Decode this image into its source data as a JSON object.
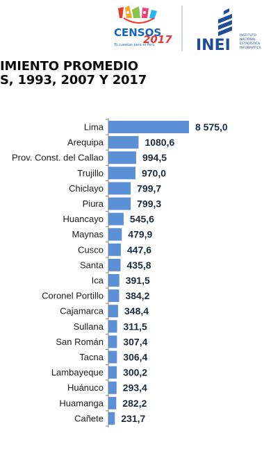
{
  "header": {
    "censos_logo": {
      "name": "CENSOS",
      "year": "2017",
      "tagline": "Tú cuentas para el Perú"
    },
    "inei_logo": {
      "acronym": "INEI",
      "line1": "INSTITUTO",
      "line2": "NACIONAL",
      "line3": "ESTADÍSTICA",
      "line4": "INFORMÁTICA"
    },
    "title_line1": "IMIENTO PROMEDIO",
    "title_line2": "S, 1993, 2007 Y 2017"
  },
  "colors": {
    "bar": "#5b8fd6",
    "axis": "#7f7f7f",
    "title": "#0b0b0b"
  },
  "chart_data": {
    "type": "bar",
    "orientation": "horizontal",
    "categories": [
      "Lima",
      "Arequipa",
      "Prov. Const. del Callao",
      "Trujillo",
      "Chiclayo",
      "Piura",
      "Huancayo",
      "Maynas",
      "Cusco",
      "Santa",
      "Ica",
      "Coronel Portillo",
      "Cajamarca",
      "Sullana",
      "San Román",
      "Tacna",
      "Lambayeque",
      "Huánuco",
      "Huamanga",
      "Cañete"
    ],
    "values": [
      8575.0,
      1080.6,
      994.5,
      970.0,
      799.7,
      799.3,
      545.6,
      479.9,
      447.6,
      435.8,
      391.5,
      384.2,
      348.4,
      311.5,
      307.4,
      306.4,
      300.2,
      293.4,
      282.2,
      231.7
    ],
    "value_labels": [
      "8 575,0",
      "1080,6",
      "994,5",
      "970,0",
      "799,7",
      "799,3",
      "545,6",
      "479,9",
      "447,6",
      "435,8",
      "391,5",
      "384,2",
      "348,4",
      "311,5",
      "307,4",
      "306,4",
      "300,2",
      "293,4",
      "282,2",
      "231,7"
    ],
    "axis_break": true,
    "grid": false,
    "legend": "none"
  }
}
